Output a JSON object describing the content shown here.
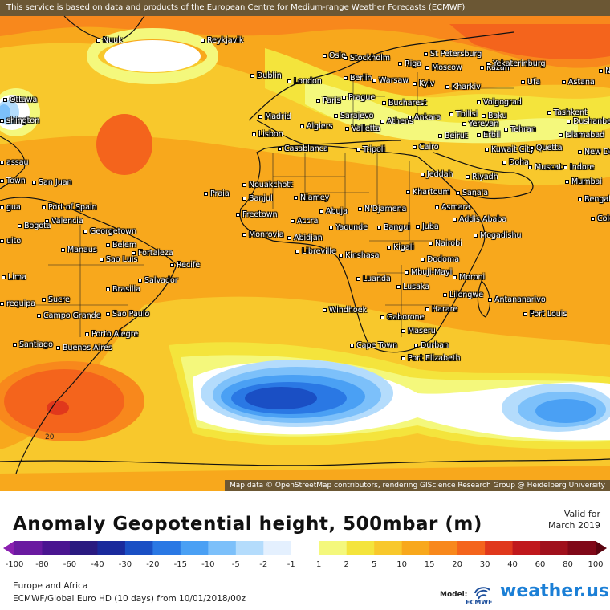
{
  "top_notice": "This service is based on data and products of the European Centre for Medium-range Weather Forecasts (ECMWF)",
  "map_credit": "Map data © OpenStreetMap contributors, rendering GIScience Research Group @ Heidelberg University",
  "title": "Anomaly Geopotential height, 500mbar (m)",
  "valid_for_label": "Valid for",
  "valid_for_date": "March 2019",
  "region": "Europe and Africa",
  "model_line": "ECMWF/Global Euro HD (10 days) from 10/01/2018/00z",
  "model_label": "Model:",
  "ecmwf_text": "ECMWF",
  "brand_main": "weather.us",
  "contour_label": "20",
  "colorbar": {
    "ticks": [
      "-100",
      "-80",
      "-60",
      "-40",
      "-30",
      "-20",
      "-15",
      "-10",
      "-5",
      "-2",
      "-1",
      "1",
      "2",
      "5",
      "10",
      "15",
      "20",
      "30",
      "40",
      "60",
      "80",
      "100"
    ],
    "colors": [
      "#8a1fb0",
      "#6a1aa0",
      "#4a1590",
      "#2a1a80",
      "#1a2a9c",
      "#1a4fc4",
      "#2a78e4",
      "#4aa0f4",
      "#7cc0fa",
      "#b4dcfc",
      "#e4f0fe",
      "#ffffff",
      "#f4f87c",
      "#f4e43c",
      "#f8c82c",
      "#f8a81c",
      "#f8881c",
      "#f4641c",
      "#e0381c",
      "#c0181c",
      "#a0101c",
      "#800818",
      "#5a0410"
    ]
  },
  "cities": [
    {
      "name": "Nuuk"
    },
    {
      "name": "Reykjavik"
    },
    {
      "name": "Oslo"
    },
    {
      "name": "Stockholm"
    },
    {
      "name": "St Petersburg"
    },
    {
      "name": "Riga"
    },
    {
      "name": "Moscow"
    },
    {
      "name": "Kazan"
    },
    {
      "name": "Yekaterinburg"
    },
    {
      "name": "Dublin"
    },
    {
      "name": "London"
    },
    {
      "name": "Berlin"
    },
    {
      "name": "Warsaw"
    },
    {
      "name": "Kyiv"
    },
    {
      "name": "Kharkiv"
    },
    {
      "name": "Ufa"
    },
    {
      "name": "Astana"
    },
    {
      "name": "Ottawa"
    },
    {
      "name": "shington"
    },
    {
      "name": "Paris"
    },
    {
      "name": "Prague"
    },
    {
      "name": "Bucharest"
    },
    {
      "name": "Volgograd"
    },
    {
      "name": "Tashkent"
    },
    {
      "name": "Madrid"
    },
    {
      "name": "Sarajevo"
    },
    {
      "name": "Tbilisi"
    },
    {
      "name": "Baku"
    },
    {
      "name": "Lisbon"
    },
    {
      "name": "Algiers"
    },
    {
      "name": "Valletta"
    },
    {
      "name": "Athens"
    },
    {
      "name": "Ankara"
    },
    {
      "name": "Yerevan"
    },
    {
      "name": "Tehran"
    },
    {
      "name": "Dushanbe"
    },
    {
      "name": "Beirut"
    },
    {
      "name": "Erbil"
    },
    {
      "name": "Islamabad"
    },
    {
      "name": "Casablanca"
    },
    {
      "name": "Tripoli"
    },
    {
      "name": "Cairo"
    },
    {
      "name": "Kuwait City"
    },
    {
      "name": "Quetta"
    },
    {
      "name": "New De"
    },
    {
      "name": "assau"
    },
    {
      "name": "Doha"
    },
    {
      "name": "Muscat"
    },
    {
      "name": "Indore"
    },
    {
      "name": "Town"
    },
    {
      "name": "Jeddah"
    },
    {
      "name": "Riyadh"
    },
    {
      "name": "Mumbai"
    },
    {
      "name": "San Juan"
    },
    {
      "name": "Nouakchott"
    },
    {
      "name": "Praia"
    },
    {
      "name": "Khartoum"
    },
    {
      "name": "Sana'a"
    },
    {
      "name": "Bengal"
    },
    {
      "name": "gua"
    },
    {
      "name": "Banjul"
    },
    {
      "name": "Niamey"
    },
    {
      "name": "Port of Spain"
    },
    {
      "name": "Freetown"
    },
    {
      "name": "Abuja"
    },
    {
      "name": "N'Djamena"
    },
    {
      "name": "Asmara"
    },
    {
      "name": "Addis Ababa"
    },
    {
      "name": "Valencia"
    },
    {
      "name": "Colo"
    },
    {
      "name": "Bogota"
    },
    {
      "name": "Accra"
    },
    {
      "name": "Yaounde"
    },
    {
      "name": "Bangui"
    },
    {
      "name": "Juba"
    },
    {
      "name": "Georgetown"
    },
    {
      "name": "Monrovia"
    },
    {
      "name": "Abidjan"
    },
    {
      "name": "Mogadishu"
    },
    {
      "name": "uito"
    },
    {
      "name": "Belem"
    },
    {
      "name": "Libreville"
    },
    {
      "name": "Kigali"
    },
    {
      "name": "Nairobi"
    },
    {
      "name": "Manaus"
    },
    {
      "name": "Fortaleza"
    },
    {
      "name": "Sao Luis"
    },
    {
      "name": "Kinshasa"
    },
    {
      "name": "Dodoma"
    },
    {
      "name": "Recife"
    },
    {
      "name": "Lima"
    },
    {
      "name": "Mbuji-Mayi"
    },
    {
      "name": "Moroni"
    },
    {
      "name": "Salvador"
    },
    {
      "name": "Luanda"
    },
    {
      "name": "Brasilia"
    },
    {
      "name": "Lusaka"
    },
    {
      "name": "Sucre"
    },
    {
      "name": "Lilongwe"
    },
    {
      "name": "Antananarivo"
    },
    {
      "name": "requipa"
    },
    {
      "name": "Campo Grande"
    },
    {
      "name": "Sao Paulo"
    },
    {
      "name": "Windhoek"
    },
    {
      "name": "Harare"
    },
    {
      "name": "Port Louis"
    },
    {
      "name": "Gaborone"
    },
    {
      "name": "Porto Alegre"
    },
    {
      "name": "Maseru"
    },
    {
      "name": "Santiago"
    },
    {
      "name": "Durban"
    },
    {
      "name": "Buenos Aires"
    },
    {
      "name": "Cape Town"
    },
    {
      "name": "Port Elizabeth"
    },
    {
      "name": "No"
    }
  ]
}
